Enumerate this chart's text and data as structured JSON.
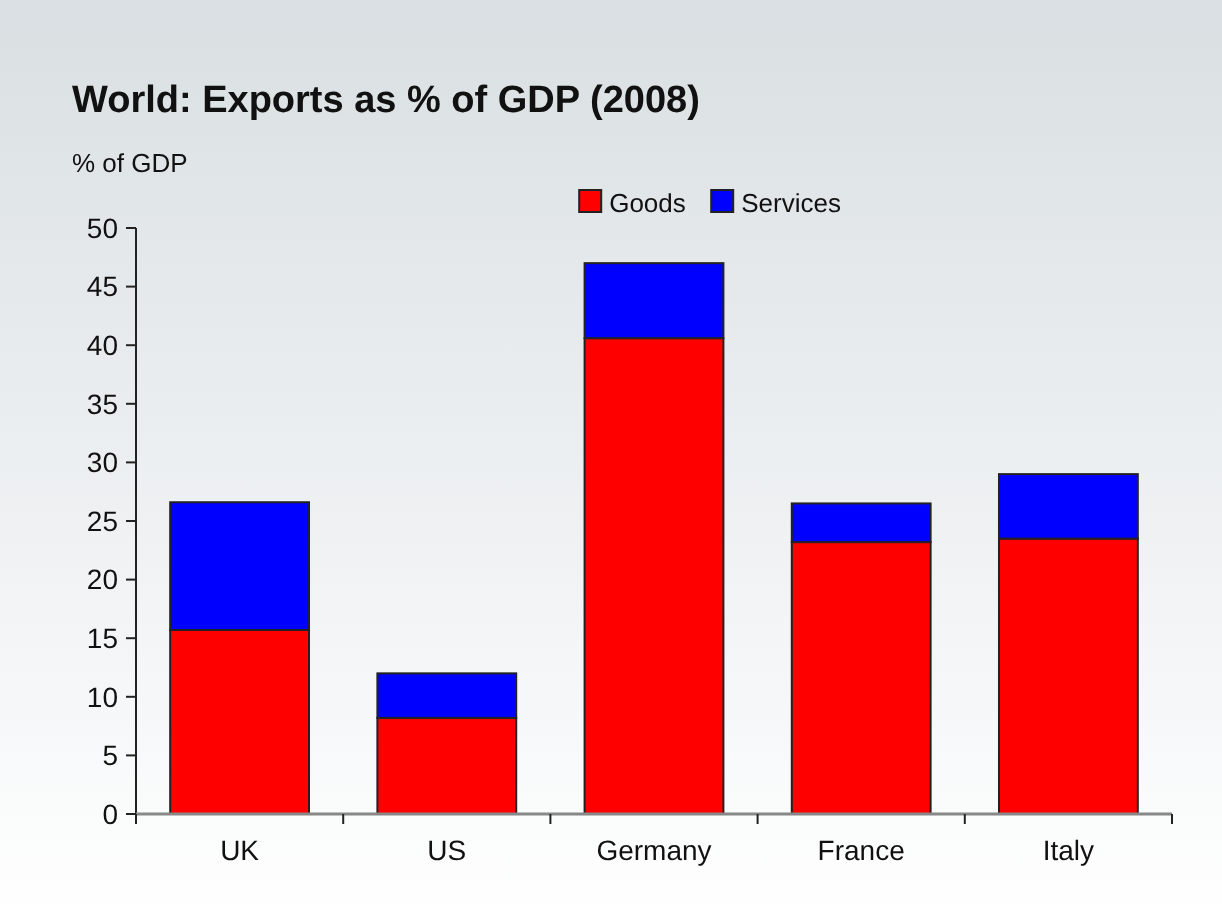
{
  "chart_data": {
    "type": "bar",
    "title": "World: Exports as % of GDP (2008)",
    "ylabel": "% of GDP",
    "categories": [
      "UK",
      "US",
      "Germany",
      "France",
      "Italy"
    ],
    "stacked": true,
    "series": [
      {
        "name": "Goods",
        "color": "#ff0000",
        "values": [
          15.7,
          8.2,
          40.6,
          23.2,
          23.5
        ]
      },
      {
        "name": "Services",
        "color": "#0000ff",
        "values": [
          10.9,
          3.8,
          6.4,
          3.3,
          5.5
        ]
      }
    ],
    "ylim": [
      0,
      50
    ],
    "yticks": [
      0,
      5,
      10,
      15,
      20,
      25,
      30,
      35,
      40,
      45,
      50
    ],
    "legend": "top",
    "grid": false
  }
}
